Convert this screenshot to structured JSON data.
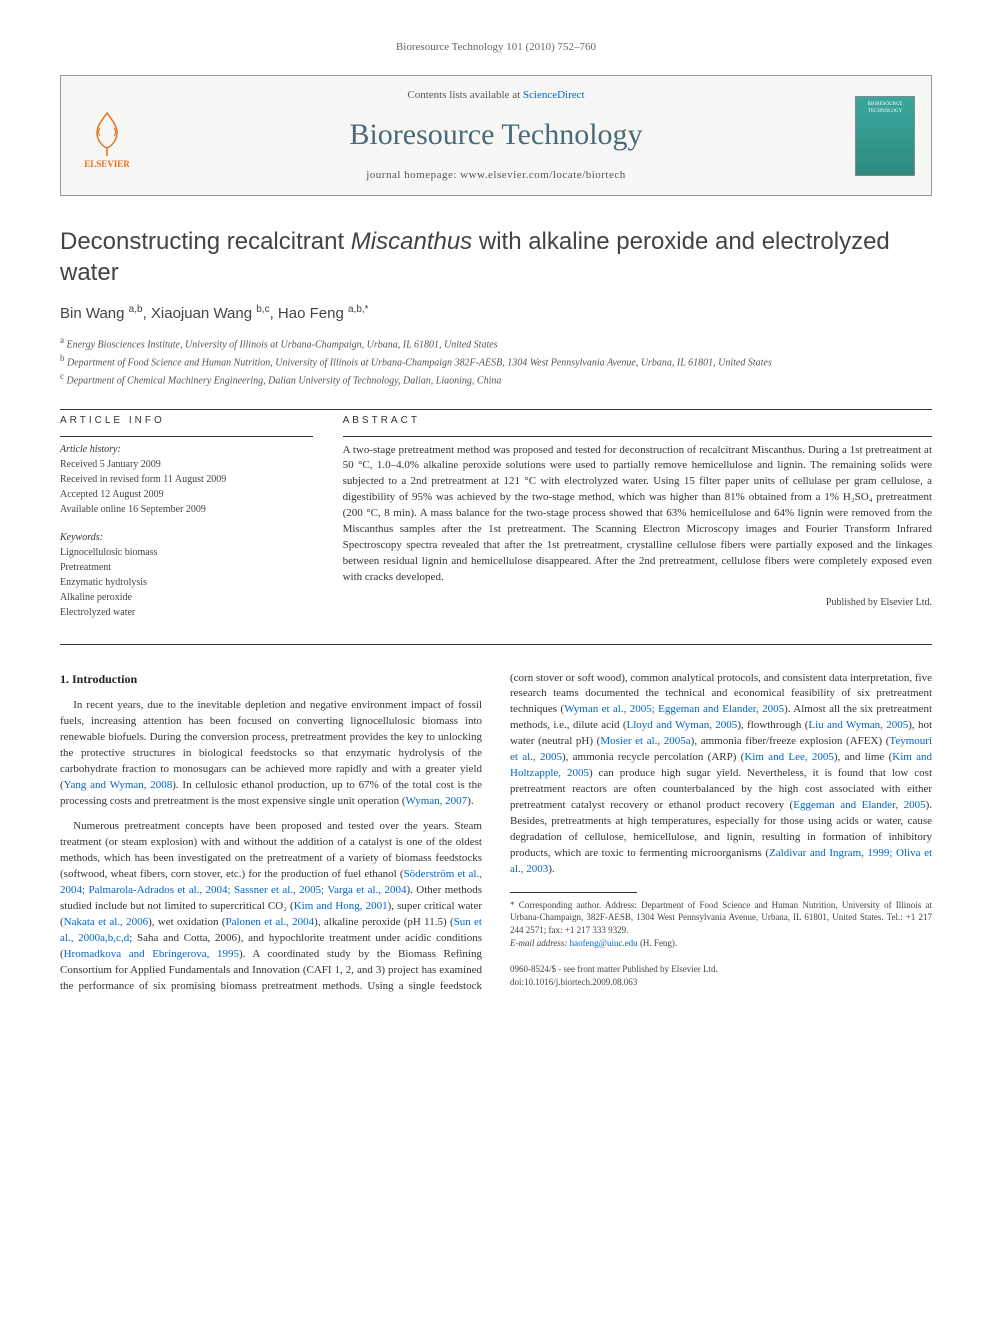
{
  "running_head": "Bioresource Technology 101 (2010) 752–760",
  "masthead": {
    "publisher": "ELSEVIER",
    "contents_prefix": "Contents lists available at ",
    "contents_link": "ScienceDirect",
    "journal_name": "Bioresource Technology",
    "homepage_prefix": "journal homepage: ",
    "homepage": "www.elsevier.com/locate/biortech",
    "cover_text": "BIORESOURCE TECHNOLOGY"
  },
  "title_before": "Deconstructing recalcitrant ",
  "title_italic": "Miscanthus",
  "title_after": " with alkaline peroxide and electrolyzed water",
  "authors_html": "Bin Wang <sup>a,b</sup>, Xiaojuan Wang <sup>b,c</sup>, Hao Feng <sup>a,b,*</sup>",
  "affiliations": [
    {
      "sup": "a",
      "text": "Energy Biosciences Institute, University of Illinois at Urbana-Champaign, Urbana, IL 61801, United States"
    },
    {
      "sup": "b",
      "text": "Department of Food Science and Human Nutrition, University of Illinois at Urbana-Champaign 382F-AESB, 1304 West Pennsylvania Avenue, Urbana, IL 61801, United States"
    },
    {
      "sup": "c",
      "text": "Department of Chemical Machinery Engineering, Dalian University of Technology, Dalian, Liaoning, China"
    }
  ],
  "info": {
    "heading": "ARTICLE INFO",
    "history_label": "Article history:",
    "history": [
      "Received 5 January 2009",
      "Received in revised form 11 August 2009",
      "Accepted 12 August 2009",
      "Available online 16 September 2009"
    ],
    "keywords_label": "Keywords:",
    "keywords": [
      "Lignocellulosic biomass",
      "Pretreatment",
      "Enzymatic hydrolysis",
      "Alkaline peroxide",
      "Electrolyzed water"
    ]
  },
  "abstract": {
    "heading": "ABSTRACT",
    "text": "A two-stage pretreatment method was proposed and tested for deconstruction of recalcitrant Miscanthus. During a 1st pretreatment at 50 °C, 1.0–4.0% alkaline peroxide solutions were used to partially remove hemicellulose and lignin. The remaining solids were subjected to a 2nd pretreatment at 121 °C with electrolyzed water. Using 15 filter paper units of cellulase per gram cellulose, a digestibility of 95% was achieved by the two-stage method, which was higher than 81% obtained from a 1% H₂SO₄ pretreatment (200 °C, 8 min). A mass balance for the two-stage process showed that 63% hemicellulose and 64% lignin were removed from the Miscanthus samples after the 1st pretreatment. The Scanning Electron Microscopy images and Fourier Transform Infrared Spectroscopy spectra revealed that after the 1st pretreatment, crystalline cellulose fibers were partially exposed and the linkages between residual lignin and hemicellulose disappeared. After the 2nd pretreatment, cellulose fibers were completely exposed even with cracks developed.",
    "published_by": "Published by Elsevier Ltd."
  },
  "sections": {
    "intro_heading": "1. Introduction",
    "p1_a": "In recent years, due to the inevitable depletion and negative environment impact of fossil fuels, increasing attention has been focused on converting lignocellulosic biomass into renewable biofuels. During the conversion process, pretreatment provides the key to unlocking the protective structures in biological feedstocks so that enzymatic hydrolysis of the carbohydrate fraction to monosugars can be achieved more rapidly and with a greater yield (",
    "p1_link1": "Yang and Wyman, 2008",
    "p1_b": "). In cellulosic ethanol production, up to 67% of the total cost is the processing costs and pretreatment is the most expensive single unit operation (",
    "p1_link2": "Wyman, 2007",
    "p1_c": ").",
    "p2_a": "Numerous pretreatment concepts have been proposed and tested over the years. Steam treatment (or steam explosion) with and without the addition of a catalyst is one of the oldest methods, which has been investigated on the pretreatment of a variety of biomass feedstocks (softwood, wheat fibers, corn stover, etc.) for the production of fuel ethanol (",
    "p2_link1": "Söderström et al., 2004; Palmarola-Adrados et al., 2004; Sassner et al., 2005; Varga et al., 2004",
    "p2_b": "). Other methods studied include but not limited to supercritical CO₂ (",
    "p2_link2": "Kim and Hong, 2001",
    "p2_c": "), super critical water (",
    "p2_link3": "Nakata et al., 2006",
    "p2_d": "), wet oxidation (",
    "p2_link4": "Palonen et al., 2004",
    "p2_e": "), alkaline peroxide (pH 11.5) (",
    "p2_link5": "Sun et al., 2000a,b,c,d",
    "p2_f": "; Saha and Cotta, 2006), and hypochlorite treatment under acidic conditions (",
    "p2_link6": "Hromadkova and Ebringerova, 1995",
    "p2_g": "). A coordinated study by the Biomass Refining Consortium for Applied Fundamentals and Innovation (CAFI 1, 2, and 3) project has examined the performance of six promising biomass pretreatment methods. Using a single feedstock (corn stover or soft wood), common analytical protocols, and consistent data interpretation, five research teams documented the technical and economical feasibility of six pretreatment techniques (",
    "p2_link7": "Wyman et al., 2005; Eggeman and Elander, 2005",
    "p2_h": "). Almost all the six pretreatment methods, i.e., dilute acid (",
    "p2_link8": "Lloyd and Wyman, 2005",
    "p2_i": "), flowthrough (",
    "p2_link9": "Liu and Wyman, 2005",
    "p2_j": "), hot water (neutral pH) (",
    "p2_link10": "Mosier et al., 2005a",
    "p2_k": "), ammonia fiber/freeze explosion (AFEX) (",
    "p2_link11": "Teymouri et al., 2005",
    "p2_l": "), ammonia recycle percolation (ARP) (",
    "p2_link12": "Kim and Lee, 2005",
    "p2_m": "), and lime (",
    "p2_link13": "Kim and Holtzapple, 2005",
    "p2_n": ") can produce high sugar yield. Nevertheless, it is found that low cost pretreatment reactors are often counterbalanced by the high cost associated with either pretreatment catalyst recovery or ethanol product recovery (",
    "p2_link14": "Eggeman and Elander, 2005",
    "p2_o": "). Besides, pretreatments at high temperatures, especially for those using acids or water, cause degradation of cellulose, hemicellulose, and lignin, resulting in formation of inhibitory products, which are toxic to fermenting microorganisms (",
    "p2_link15": "Zaldivar and Ingram, 1999; Oliva et al., 2003",
    "p2_p": ")."
  },
  "footnotes": {
    "corr": "* Corresponding author. Address: Department of Food Science and Human Nutrition, University of Illinois at Urbana-Champaign, 382F-AESB, 1304 West Pennsylvania Avenue, Urbana, IL 61801, United States. Tel.: +1 217 244 2571; fax: +1 217 333 9329.",
    "email_label": "E-mail address: ",
    "email": "haofeng@uiuc.edu",
    "email_suffix": " (H. Feng)."
  },
  "doi": {
    "line1": "0960-8524/$ - see front matter Published by Elsevier Ltd.",
    "line2": "doi:10.1016/j.biortech.2009.08.063"
  },
  "colors": {
    "link": "#0066cc",
    "publisher": "#e9711c",
    "journal": "#4a6a7a"
  }
}
